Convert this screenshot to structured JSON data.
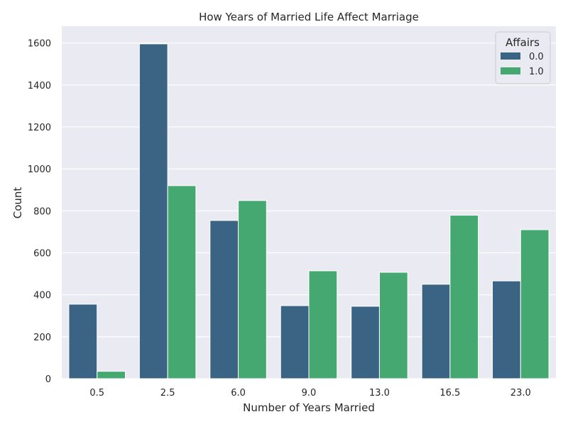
{
  "chart_data": {
    "type": "bar",
    "title": "How Years of Married Life Affect Marriage",
    "xlabel": "Number of Years Married",
    "ylabel": "Count",
    "categories": [
      "0.5",
      "2.5",
      "6.0",
      "9.0",
      "13.0",
      "16.5",
      "23.0"
    ],
    "yticks": [
      0,
      200,
      400,
      600,
      800,
      1000,
      1200,
      1400,
      1600
    ],
    "ylim": [
      0,
      1680
    ],
    "grid": true,
    "legend": {
      "title": "Affairs",
      "placement": "top-right"
    },
    "series": [
      {
        "name": "0.0",
        "color": "#3b6383",
        "values": [
          355,
          1596,
          754,
          348,
          345,
          450,
          466
        ]
      },
      {
        "name": "1.0",
        "color": "#44a870",
        "values": [
          35,
          920,
          849,
          514,
          507,
          779,
          710
        ]
      }
    ],
    "colors": {
      "plot_background": "#eaeaf2",
      "grid": "#ffffff"
    }
  }
}
